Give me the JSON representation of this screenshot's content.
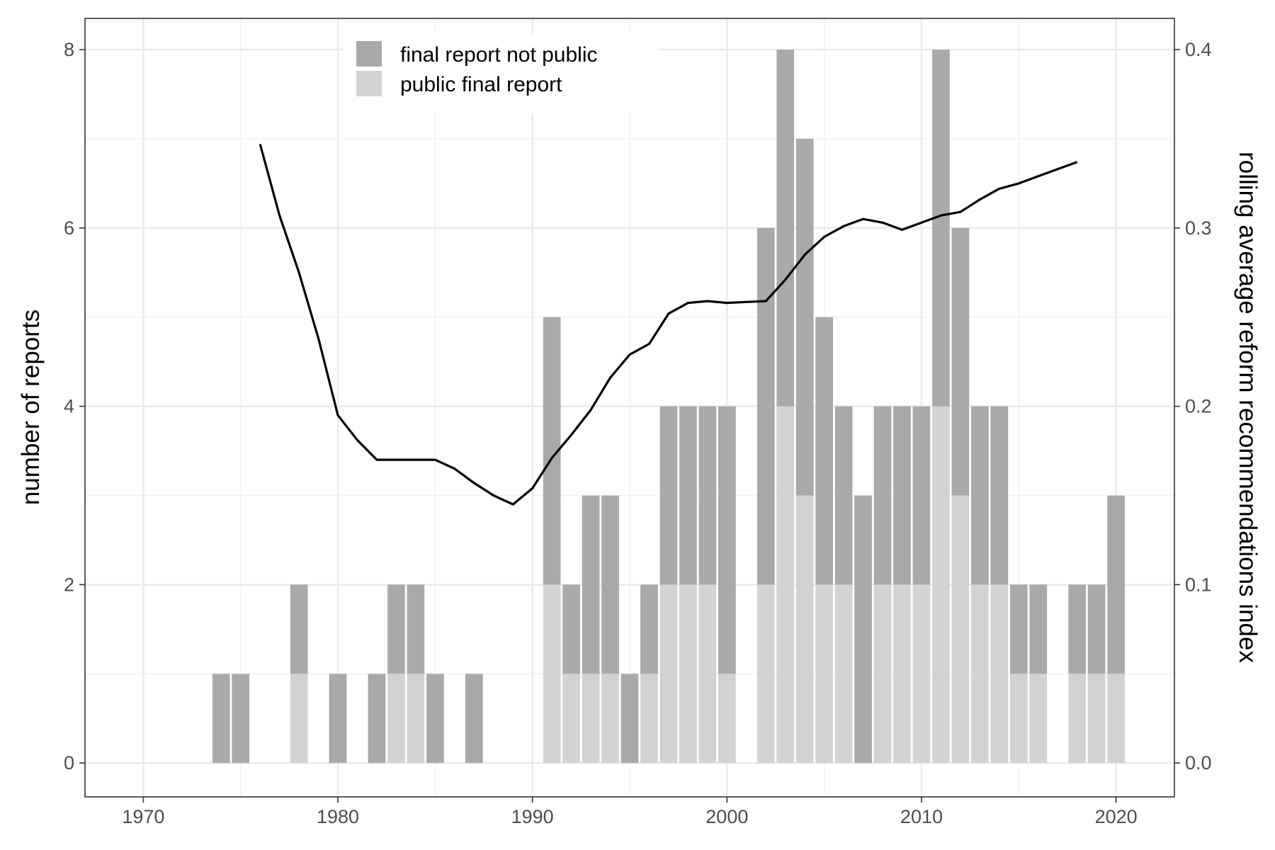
{
  "chart_data": {
    "type": "bar",
    "stacked": true,
    "title": "",
    "xlabel": "",
    "ylabel": "number of reports",
    "y2label": "rolling average reform recommendations index",
    "xlim": [
      1967,
      2023
    ],
    "ylim": [
      -0.38,
      8.35
    ],
    "y2lim": [
      -0.019,
      0.4175
    ],
    "x_ticks": [
      1970,
      1980,
      1990,
      2000,
      2010,
      2020
    ],
    "x_tick_labels": [
      "1970",
      "1980",
      "1990",
      "2000",
      "2010",
      "2020"
    ],
    "y_ticks": [
      0,
      2,
      4,
      6,
      8
    ],
    "y_tick_labels": [
      "0",
      "2",
      "4",
      "6",
      "8"
    ],
    "y2_ticks": [
      0,
      0.1,
      0.2,
      0.3,
      0.4
    ],
    "y2_tick_labels": [
      "0.0",
      "0.1",
      "0.2",
      "0.3",
      "0.4"
    ],
    "grid": true,
    "legend_position": "top-center",
    "legend": [
      "final report not public",
      "public final report"
    ],
    "colors": {
      "not_public": "#a9a9a9",
      "public": "#d3d3d3",
      "line": "#000000"
    },
    "years": [
      1974,
      1975,
      1978,
      1980,
      1982,
      1983,
      1984,
      1985,
      1987,
      1991,
      1992,
      1993,
      1994,
      1995,
      1996,
      1997,
      1998,
      1999,
      2000,
      2002,
      2003,
      2004,
      2005,
      2006,
      2007,
      2008,
      2009,
      2010,
      2011,
      2012,
      2013,
      2014,
      2015,
      2016,
      2018,
      2019,
      2020
    ],
    "series": [
      {
        "name": "public final report",
        "values": [
          0,
          0,
          1,
          0,
          0,
          1,
          1,
          0,
          0,
          2,
          1,
          1,
          1,
          0,
          1,
          2,
          2,
          2,
          1,
          2,
          4,
          3,
          2,
          2,
          0,
          2,
          2,
          2,
          4,
          3,
          2,
          2,
          1,
          1,
          1,
          1,
          1
        ]
      },
      {
        "name": "final report not public",
        "values": [
          1,
          1,
          1,
          1,
          1,
          1,
          1,
          1,
          1,
          3,
          1,
          2,
          2,
          1,
          1,
          2,
          2,
          2,
          3,
          4,
          4,
          4,
          3,
          2,
          3,
          2,
          2,
          2,
          4,
          3,
          2,
          2,
          1,
          1,
          1,
          1,
          2
        ]
      }
    ],
    "line_series": {
      "axis": "right",
      "x": [
        1976,
        1977,
        1978,
        1979,
        1980,
        1981,
        1982,
        1983,
        1984,
        1985,
        1986,
        1987,
        1988,
        1989,
        1990,
        1991,
        1992,
        1993,
        1994,
        1995,
        1996,
        1997,
        1998,
        1999,
        2000,
        2001,
        2002,
        2003,
        2004,
        2005,
        2006,
        2007,
        2008,
        2009,
        2010,
        2011,
        2012,
        2013,
        2014,
        2015,
        2016,
        2017,
        2018
      ],
      "y": [
        0.347,
        0.307,
        0.275,
        0.238,
        0.195,
        0.181,
        0.17,
        0.17,
        0.17,
        0.17,
        0.165,
        0.157,
        0.15,
        0.145,
        0.154,
        0.171,
        0.184,
        0.198,
        0.216,
        0.229,
        0.235,
        0.252,
        0.258,
        0.259,
        0.258,
        0.2585,
        0.259,
        0.271,
        0.285,
        0.295,
        0.301,
        0.305,
        0.303,
        0.299,
        0.303,
        0.307,
        0.309,
        0.316,
        0.322,
        0.325,
        0.329,
        0.333,
        0.337
      ]
    }
  }
}
